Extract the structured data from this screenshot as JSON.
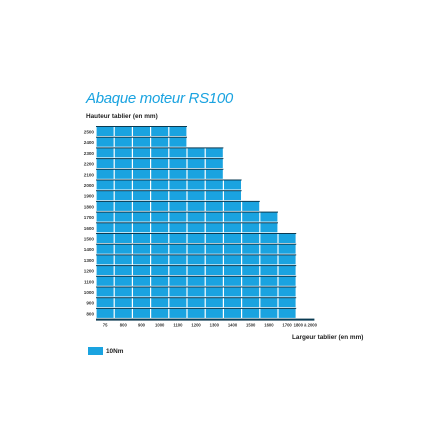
{
  "chart_data": {
    "type": "heatmap",
    "title": "Abaque moteur RS100",
    "ylabel": "Hauteur tablier (en mm)",
    "xlabel": "Largeur tablier (en mm)",
    "x_ticks": [
      "75",
      "800",
      "900",
      "1000",
      "1100",
      "1200",
      "1300",
      "1400",
      "1500",
      "1600",
      "1700",
      "1800 à 2000"
    ],
    "y_ticks": [
      "2500",
      "2400",
      "2300",
      "2200",
      "2100",
      "2000",
      "1900",
      "1800",
      "1700",
      "1600",
      "1500",
      "1400",
      "1300",
      "1200",
      "1100",
      "1000",
      "900",
      "800"
    ],
    "max_width_index_by_row": [
      4,
      4,
      6,
      6,
      6,
      7,
      7,
      8,
      9,
      9,
      10,
      10,
      10,
      10,
      10,
      10,
      10,
      10
    ],
    "legend": [
      {
        "label": "10Nm",
        "color": "#1aa3e0"
      }
    ],
    "colors": {
      "cell": "#1aa3e0",
      "title": "#1aa3e0",
      "divider": "#0a3a52"
    }
  }
}
